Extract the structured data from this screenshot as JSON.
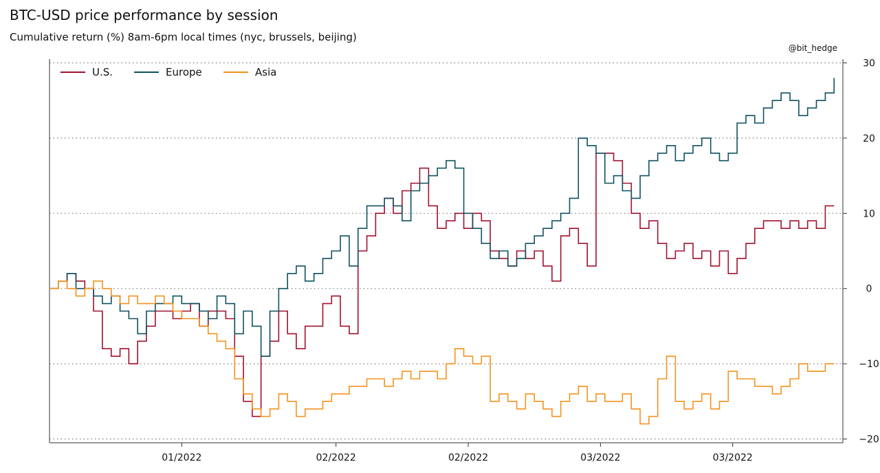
{
  "header": {
    "title": "BTC-USD price performance by session",
    "subtitle": "Cumulative return (%) 8am-6pm local times (nyc, brussels, beijing)",
    "credit": "@bit_hedge"
  },
  "chart_data": {
    "type": "line",
    "title": "BTC-USD price performance by session",
    "subtitle": "Cumulative return (%) 8am-6pm local times (nyc, brussels, beijing)",
    "xlabel": "",
    "ylabel": "",
    "ylim": [
      -20.5,
      30.5
    ],
    "y_ticks": [
      30,
      20,
      10,
      0,
      -10,
      -20
    ],
    "y_axis_side": "right",
    "grid": "horizontal dotted",
    "legend_placement": "top-left",
    "x_tick_labels": [
      "01/2022",
      "02/2022",
      "02/2022",
      "03/2022",
      "03/2022"
    ],
    "x_tick_positions": [
      30,
      65,
      95,
      125,
      155
    ],
    "xlim": [
      0,
      180
    ],
    "series": [
      {
        "name": "U.S.",
        "color": "#a0102e",
        "x": [
          0,
          2,
          4,
          6,
          8,
          10,
          12,
          14,
          16,
          18,
          20,
          22,
          24,
          26,
          28,
          30,
          32,
          34,
          36,
          38,
          40,
          42,
          44,
          46,
          48,
          50,
          52,
          54,
          56,
          58,
          60,
          62,
          64,
          66,
          68,
          70,
          72,
          74,
          76,
          78,
          80,
          82,
          84,
          86,
          88,
          90,
          92,
          94,
          96,
          98,
          100,
          102,
          104,
          106,
          108,
          110,
          112,
          114,
          116,
          118,
          120,
          122,
          124,
          126,
          128,
          130,
          132,
          134,
          136,
          138,
          140,
          142,
          144,
          146,
          148,
          150,
          152,
          154,
          156,
          158,
          160,
          162,
          164,
          166,
          168,
          170,
          172,
          174,
          176,
          178
        ],
        "values": [
          0,
          1,
          2,
          1,
          0,
          -3,
          -8,
          -9,
          -8,
          -10,
          -7,
          -5,
          -3,
          -3,
          -4,
          -3,
          -2,
          -5,
          -3,
          -3,
          -4,
          -9,
          -15,
          -17,
          -9,
          -7,
          -3,
          -6,
          -8,
          -5,
          -5,
          -2,
          -1,
          -5,
          -6,
          5,
          7,
          10,
          12,
          10,
          13,
          14,
          16,
          11,
          8,
          9,
          10,
          8,
          10,
          9,
          5,
          4,
          3,
          5,
          4,
          5,
          3,
          1,
          7,
          8,
          6,
          3,
          18,
          18,
          17,
          14,
          10,
          8,
          9,
          6,
          4,
          5,
          6,
          4,
          5,
          3,
          5,
          2,
          4,
          6,
          8,
          9,
          9,
          8,
          9,
          8,
          9,
          8,
          11,
          11
        ]
      },
      {
        "name": "Europe",
        "color": "#0f5060",
        "x": [
          0,
          2,
          4,
          6,
          8,
          10,
          12,
          14,
          16,
          18,
          20,
          22,
          24,
          26,
          28,
          30,
          32,
          34,
          36,
          38,
          40,
          42,
          44,
          46,
          48,
          50,
          52,
          54,
          56,
          58,
          60,
          62,
          64,
          66,
          68,
          70,
          72,
          74,
          76,
          78,
          80,
          82,
          84,
          86,
          88,
          90,
          92,
          94,
          96,
          98,
          100,
          102,
          104,
          106,
          108,
          110,
          112,
          114,
          116,
          118,
          120,
          122,
          124,
          126,
          128,
          130,
          132,
          134,
          136,
          138,
          140,
          142,
          144,
          146,
          148,
          150,
          152,
          154,
          156,
          158,
          160,
          162,
          164,
          166,
          168,
          170,
          172,
          174,
          176,
          178
        ],
        "values": [
          0,
          1,
          2,
          0,
          0,
          -1,
          -2,
          -1,
          -3,
          -4,
          -6,
          -3,
          -2,
          -2,
          -1,
          -2,
          -2,
          -3,
          -4,
          -1,
          -2,
          -6,
          -3,
          -5,
          -9,
          -3,
          0,
          2,
          3,
          1,
          2,
          4,
          5,
          7,
          3,
          8,
          11,
          11,
          12,
          11,
          9,
          13,
          14,
          15,
          16,
          17,
          16,
          10,
          8,
          6,
          4,
          5,
          3,
          4,
          6,
          7,
          8,
          9,
          10,
          12,
          20,
          19,
          18,
          14,
          15,
          13,
          12,
          15,
          17,
          18,
          19,
          17,
          18,
          19,
          20,
          18,
          17,
          18,
          22,
          23,
          22,
          24,
          25,
          26,
          25,
          23,
          24,
          25,
          26,
          28
        ]
      },
      {
        "name": "Asia",
        "color": "#f5921e",
        "x": [
          0,
          2,
          4,
          6,
          8,
          10,
          12,
          14,
          16,
          18,
          20,
          22,
          24,
          26,
          28,
          30,
          32,
          34,
          36,
          38,
          40,
          42,
          44,
          46,
          48,
          50,
          52,
          54,
          56,
          58,
          60,
          62,
          64,
          66,
          68,
          70,
          72,
          74,
          76,
          78,
          80,
          82,
          84,
          86,
          88,
          90,
          92,
          94,
          96,
          98,
          100,
          102,
          104,
          106,
          108,
          110,
          112,
          114,
          116,
          118,
          120,
          122,
          124,
          126,
          128,
          130,
          132,
          134,
          136,
          138,
          140,
          142,
          144,
          146,
          148,
          150,
          152,
          154,
          156,
          158,
          160,
          162,
          164,
          166,
          168,
          170,
          172,
          174,
          176,
          178
        ],
        "values": [
          0,
          1,
          0,
          -1,
          0,
          1,
          0,
          -1,
          -2,
          -1,
          -2,
          -2,
          -1,
          -2,
          -3,
          -4,
          -4,
          -5,
          -6,
          -7,
          -8,
          -12,
          -14,
          -16,
          -17,
          -16,
          -14,
          -15,
          -17,
          -16,
          -16,
          -15,
          -14,
          -14,
          -13,
          -13,
          -12,
          -12,
          -13,
          -12,
          -11,
          -12,
          -11,
          -11,
          -12,
          -10,
          -8,
          -9,
          -10,
          -9,
          -15,
          -14,
          -15,
          -16,
          -14,
          -15,
          -16,
          -17,
          -15,
          -14,
          -13,
          -15,
          -14,
          -15,
          -15,
          -14,
          -16,
          -18,
          -17,
          -12,
          -9,
          -15,
          -16,
          -15,
          -14,
          -16,
          -15,
          -11,
          -12,
          -12,
          -13,
          -13,
          -14,
          -13,
          -12,
          -10,
          -11,
          -11,
          -10,
          -10
        ]
      }
    ]
  }
}
